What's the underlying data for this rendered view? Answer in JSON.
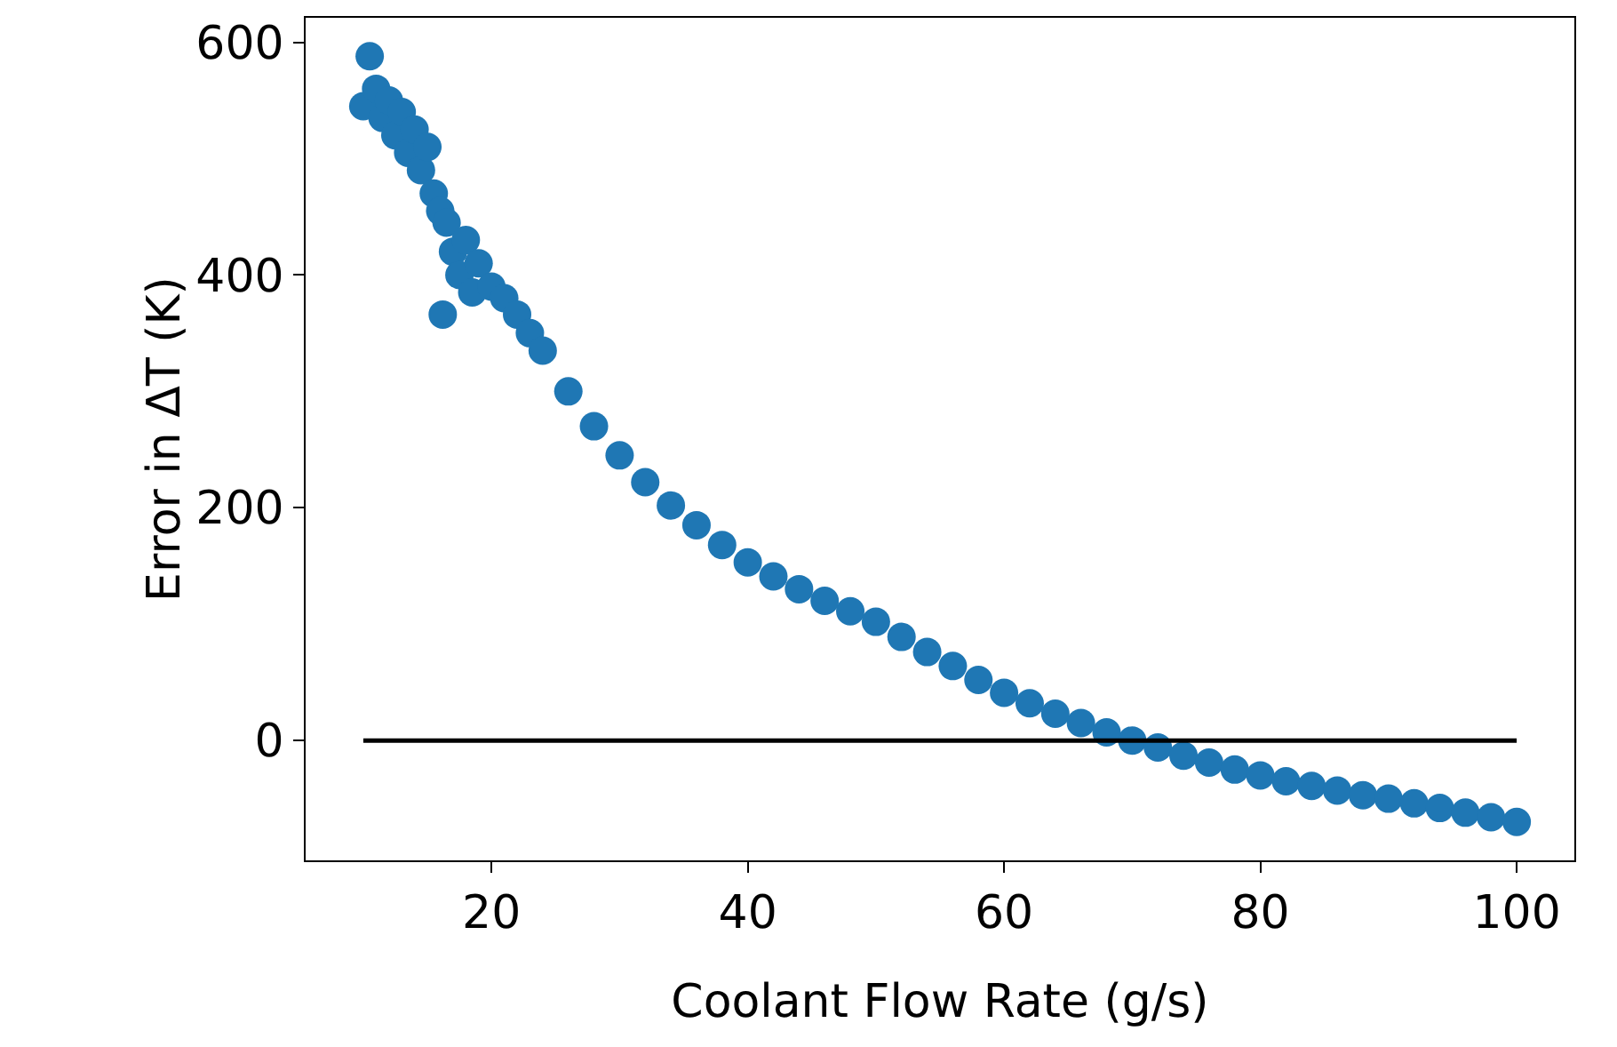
{
  "chart_data": {
    "type": "scatter",
    "xlabel": "Coolant Flow Rate (g/s)",
    "ylabel": "Error in ΔT (K)",
    "xlim": [
      5.5,
      104.5
    ],
    "xticks": [
      20,
      40,
      60,
      80,
      100
    ],
    "ylim": [
      -103,
      621
    ],
    "yticks": [
      0,
      200,
      400,
      600
    ],
    "grid": false,
    "series": [
      {
        "color": "#1f77b4",
        "marker": "circle",
        "x": [
          10,
          10.5,
          11,
          11.5,
          12,
          12.5,
          13,
          13.5,
          14,
          14.5,
          15,
          15.5,
          16,
          16.2,
          16.5,
          17,
          17.5,
          18,
          18.5,
          19,
          20,
          21,
          22,
          23,
          24,
          26,
          28,
          30,
          32,
          34,
          36,
          38,
          40,
          42,
          44,
          46,
          48,
          50,
          52,
          54,
          56,
          58,
          60,
          62,
          64,
          66,
          68,
          70,
          72,
          74,
          76,
          78,
          80,
          82,
          84,
          86,
          88,
          90,
          92,
          94,
          96,
          98,
          100
        ],
        "values": [
          545,
          588,
          560,
          535,
          550,
          520,
          540,
          505,
          525,
          490,
          510,
          470,
          455,
          366,
          445,
          420,
          400,
          430,
          385,
          410,
          390,
          380,
          366,
          350,
          335,
          300,
          270,
          245,
          222,
          202,
          185,
          168,
          153,
          141,
          130,
          120,
          111,
          102,
          89,
          76,
          64,
          52,
          41,
          32,
          23,
          15,
          7,
          0,
          -6,
          -13,
          -19,
          -25,
          -30,
          -35,
          -39,
          -43,
          -47,
          -50,
          -54,
          -58,
          -62,
          -66,
          -70
        ]
      },
      {
        "type": "line",
        "color": "#000000",
        "x": [
          10,
          100
        ],
        "values": [
          0,
          0
        ]
      }
    ]
  }
}
